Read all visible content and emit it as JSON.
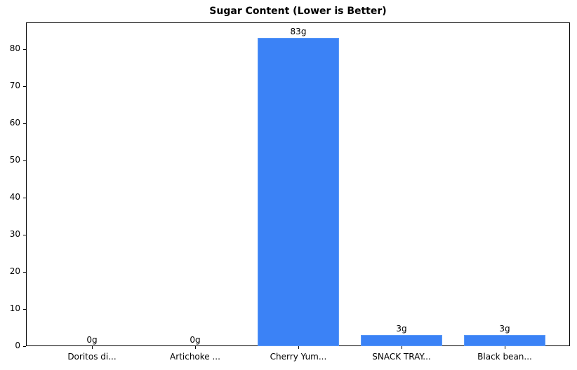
{
  "chart_data": {
    "type": "bar",
    "title": "Sugar Content (Lower is Better)",
    "xlabel": "",
    "ylabel": "",
    "categories": [
      "Doritos di...",
      "Artichoke ...",
      "Cherry Yum...",
      "SNACK TRAY...",
      "Black bean..."
    ],
    "values": [
      0,
      0,
      83,
      3,
      3
    ],
    "value_labels": [
      "0g",
      "0g",
      "83g",
      "3g",
      "3g"
    ],
    "ylim": [
      0,
      87.2
    ],
    "yticks": [
      0,
      10,
      20,
      30,
      40,
      50,
      60,
      70,
      80
    ],
    "grid": false,
    "legend": null,
    "bar_color": "#3b82f6"
  }
}
